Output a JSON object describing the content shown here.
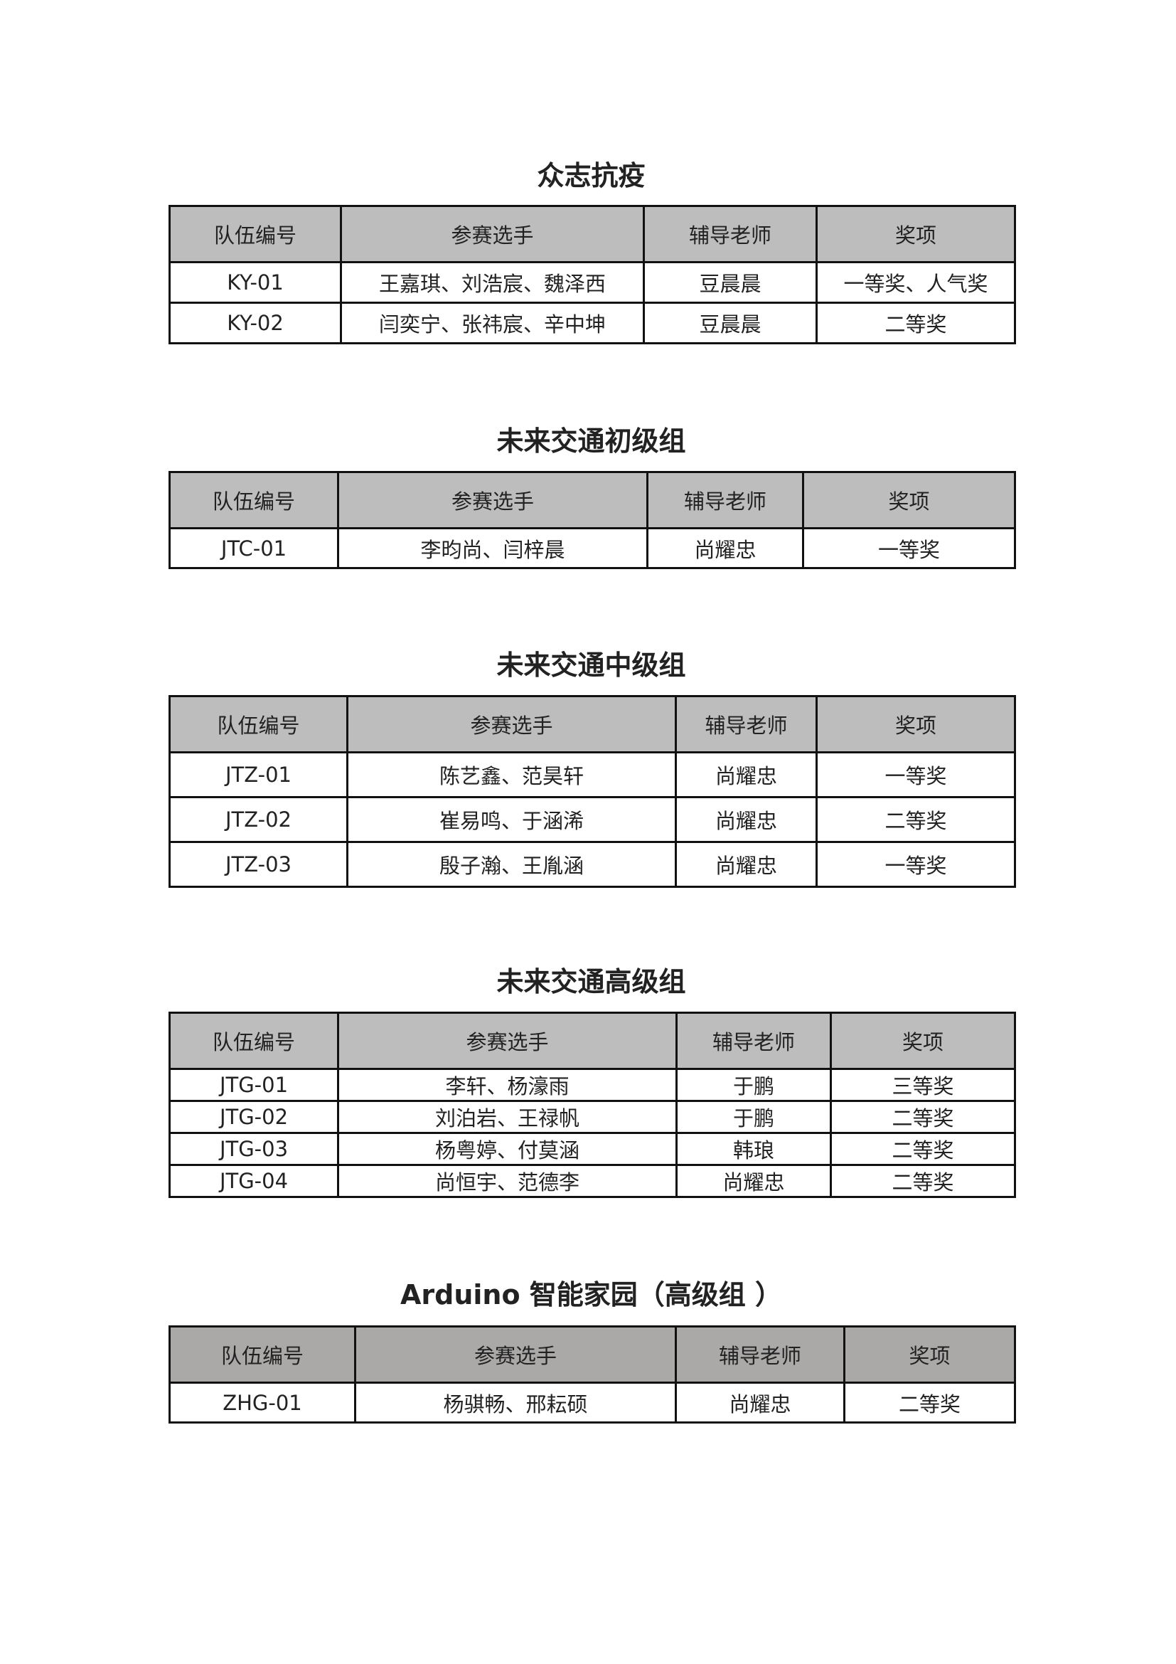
{
  "headers": [
    "队伍编号",
    "参赛选手",
    "辅导老师",
    "奖项"
  ],
  "sections": [
    {
      "title": "众志抗疫",
      "rows": [
        [
          "KY-01",
          "王嘉琪、刘浩宸、魏泽西",
          "豆晨晨",
          "一等奖、人气奖"
        ],
        [
          "KY-02",
          "闫奕宁、张祎宸、辛中坤",
          "豆晨晨",
          "二等奖"
        ]
      ]
    },
    {
      "title": "未来交通初级组",
      "rows": [
        [
          "JTC-01",
          "李昀尚、闫梓晨",
          "尚耀忠",
          "一等奖"
        ]
      ]
    },
    {
      "title": "未来交通中级组",
      "rows": [
        [
          "JTZ-01",
          "陈艺鑫、范昊轩",
          "尚耀忠",
          "一等奖"
        ],
        [
          "JTZ-02",
          "崔易鸣、于涵浠",
          "尚耀忠",
          "二等奖"
        ],
        [
          "JTZ-03",
          "殷子瀚、王胤涵",
          "尚耀忠",
          "一等奖"
        ]
      ]
    },
    {
      "title": "未来交通高级组",
      "rows": [
        [
          "JTG-01",
          "李轩、杨濠雨",
          "于鹏",
          "三等奖"
        ],
        [
          "JTG-02",
          "刘泊岩、王禄帆",
          "于鹏",
          "二等奖"
        ],
        [
          "JTG-03",
          "杨粤婷、付莫涵",
          "韩琅",
          "二等奖"
        ],
        [
          "JTG-04",
          "尚恒宇、范德李",
          "尚耀忠",
          "二等奖"
        ]
      ]
    },
    {
      "title": "Arduino 智能家园（高级组 ）",
      "rows": [
        [
          "ZHG-01",
          "杨骐畅、邢耘硕",
          "尚耀忠",
          "二等奖"
        ]
      ]
    }
  ]
}
